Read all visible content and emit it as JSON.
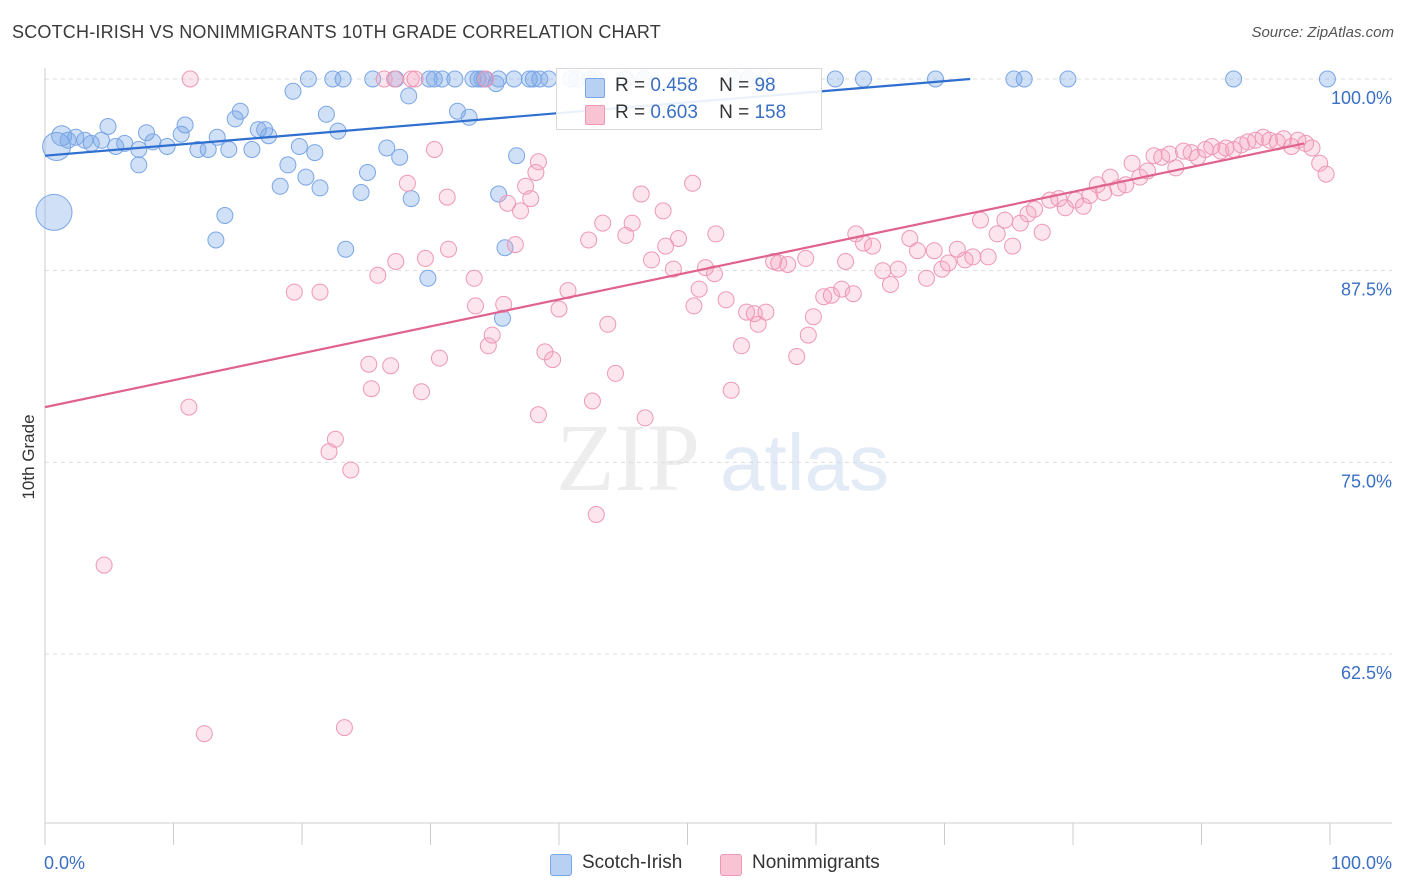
{
  "title": "SCOTCH-IRISH VS NONIMMIGRANTS 10TH GRADE CORRELATION CHART",
  "source": "Source: ZipAtlas.com",
  "watermark": {
    "zip": "ZIP",
    "atlas": "atlas"
  },
  "legend": {
    "r_label": "R =",
    "n_label": "N =",
    "rows": [
      {
        "r": "0.458",
        "n": "98"
      },
      {
        "r": "0.603",
        "n": "158"
      }
    ]
  },
  "bottom_legend": [
    "Scotch-Irish",
    "Nonimmigrants"
  ],
  "chart_data": {
    "type": "scatter",
    "ylabel": "10th Grade",
    "xlabel": "",
    "x_tick_labels": [
      "0.0%",
      "100.0%"
    ],
    "y_tick_labels": [
      "100.0%",
      "87.5%",
      "75.0%",
      "62.5%"
    ],
    "y_ticks": [
      100.0,
      87.5,
      75.0,
      62.5
    ],
    "xlim": [
      0,
      100
    ],
    "ylim": [
      52,
      102.5
    ],
    "grid": true,
    "colors": {
      "blue": "#6a9ae0",
      "pink": "#ee88aa",
      "blue_line": "#2f6fd0",
      "pink_line": "#e0628f",
      "tick_label": "#3a6fc4"
    },
    "series": [
      {
        "name": "Scotch-Irish",
        "trend": {
          "x": [
            0,
            72
          ],
          "y": [
            95.0,
            100.0
          ]
        },
        "points": [
          [
            0.9,
            95.6,
            14
          ],
          [
            0.7,
            91.3,
            18
          ],
          [
            1.3,
            96.3,
            10
          ],
          [
            1.8,
            96.0,
            8
          ],
          [
            2.4,
            96.2,
            8
          ],
          [
            3.1,
            96.0,
            8
          ],
          [
            3.6,
            95.8,
            8
          ],
          [
            4.4,
            96.0,
            8
          ],
          [
            4.9,
            96.9,
            8
          ],
          [
            5.5,
            95.6,
            8
          ],
          [
            6.2,
            95.8,
            8
          ],
          [
            7.3,
            95.4,
            8
          ],
          [
            7.9,
            96.5,
            8
          ],
          [
            8.4,
            95.9,
            8
          ],
          [
            9.5,
            95.6,
            8
          ],
          [
            10.6,
            96.4,
            8
          ],
          [
            10.9,
            97.0,
            8
          ],
          [
            11.9,
            95.4,
            8
          ],
          [
            12.7,
            95.4,
            8
          ],
          [
            14.3,
            95.4,
            8
          ],
          [
            16.1,
            95.4,
            8
          ],
          [
            7.3,
            94.4,
            8
          ],
          [
            13.4,
            96.2,
            8
          ],
          [
            14.8,
            97.4,
            8
          ],
          [
            15.2,
            97.9,
            8
          ],
          [
            16.6,
            96.7,
            8
          ],
          [
            17.1,
            96.7,
            8
          ],
          [
            17.4,
            96.3,
            8
          ],
          [
            19.3,
            99.2,
            8
          ],
          [
            18.3,
            93.0,
            8
          ],
          [
            18.9,
            94.4,
            8
          ],
          [
            19.8,
            95.6,
            8
          ],
          [
            20.3,
            93.6,
            8
          ],
          [
            21.0,
            95.2,
            8
          ],
          [
            21.4,
            92.9,
            8
          ],
          [
            21.9,
            97.7,
            8
          ],
          [
            22.8,
            96.6,
            8
          ],
          [
            14.0,
            91.1,
            8
          ],
          [
            13.3,
            89.5,
            8
          ],
          [
            23.4,
            88.9,
            8
          ],
          [
            25.1,
            93.9,
            8
          ],
          [
            24.6,
            92.6,
            8
          ],
          [
            26.6,
            95.5,
            8
          ],
          [
            27.6,
            94.9,
            8
          ],
          [
            28.3,
            98.9,
            8
          ],
          [
            28.5,
            92.2,
            8
          ],
          [
            29.9,
            100.0,
            8
          ],
          [
            30.3,
            100.0,
            8
          ],
          [
            30.9,
            100.0,
            8
          ],
          [
            29.8,
            87.0,
            8
          ],
          [
            32.1,
            97.9,
            8
          ],
          [
            33.0,
            97.5,
            8
          ],
          [
            33.7,
            100.0,
            8
          ],
          [
            34.2,
            100.0,
            8
          ],
          [
            35.3,
            100.0,
            8
          ],
          [
            35.1,
            99.7,
            8
          ],
          [
            36.5,
            100.0,
            8
          ],
          [
            35.6,
            84.4,
            8
          ],
          [
            35.8,
            89.0,
            8
          ],
          [
            36.7,
            95.0,
            8
          ],
          [
            37.7,
            100.0,
            8
          ],
          [
            38.0,
            100.0,
            8
          ],
          [
            38.5,
            100.0,
            8
          ],
          [
            39.2,
            100.0,
            8
          ],
          [
            40.9,
            100.0,
            8
          ],
          [
            41.4,
            100.0,
            8
          ],
          [
            42.4,
            100.0,
            8
          ],
          [
            42.8,
            100.0,
            8
          ],
          [
            35.3,
            92.5,
            8
          ],
          [
            45.2,
            100.0,
            8
          ],
          [
            46.6,
            100.0,
            8
          ],
          [
            53.6,
            100.0,
            8
          ],
          [
            54.7,
            100.0,
            8
          ],
          [
            56.0,
            100.0,
            8
          ],
          [
            61.5,
            100.0,
            8
          ],
          [
            63.7,
            100.0,
            8
          ],
          [
            69.3,
            100.0,
            8
          ],
          [
            75.4,
            100.0,
            8
          ],
          [
            76.2,
            100.0,
            8
          ],
          [
            79.6,
            100.0,
            8
          ],
          [
            92.5,
            100.0,
            8
          ],
          [
            99.8,
            100.0,
            8
          ],
          [
            27.3,
            100.0,
            8
          ],
          [
            25.5,
            100.0,
            8
          ],
          [
            23.2,
            100.0,
            8
          ],
          [
            20.5,
            100.0,
            8
          ],
          [
            22.4,
            100.0,
            8
          ],
          [
            31.9,
            100.0,
            8
          ],
          [
            33.3,
            100.0,
            8
          ],
          [
            34.0,
            100.0,
            8
          ]
        ]
      },
      {
        "name": "Nonimmigrants",
        "trend": {
          "x": [
            0,
            98
          ],
          "y": [
            78.6,
            95.8
          ]
        },
        "points": [
          [
            4.6,
            68.3,
            8
          ],
          [
            11.2,
            78.6,
            8
          ],
          [
            12.4,
            57.3,
            8
          ],
          [
            19.4,
            86.1,
            8
          ],
          [
            21.4,
            86.1,
            8
          ],
          [
            22.1,
            75.7,
            8
          ],
          [
            22.6,
            76.5,
            8
          ],
          [
            23.3,
            57.7,
            8
          ],
          [
            23.8,
            74.5,
            8
          ],
          [
            25.4,
            79.8,
            8
          ],
          [
            25.9,
            87.2,
            8
          ],
          [
            25.2,
            81.4,
            8
          ],
          [
            26.9,
            81.3,
            8
          ],
          [
            27.3,
            88.1,
            8
          ],
          [
            28.2,
            93.2,
            8
          ],
          [
            28.5,
            100.0,
            8
          ],
          [
            28.8,
            100.0,
            8
          ],
          [
            29.6,
            88.3,
            8
          ],
          [
            29.3,
            79.6,
            8
          ],
          [
            30.3,
            95.4,
            8
          ],
          [
            30.7,
            81.8,
            8
          ],
          [
            31.3,
            92.3,
            8
          ],
          [
            31.4,
            88.9,
            8
          ],
          [
            33.4,
            87.0,
            8
          ],
          [
            33.5,
            85.2,
            8
          ],
          [
            34.3,
            100.0,
            8
          ],
          [
            34.5,
            82.6,
            8
          ],
          [
            34.8,
            83.3,
            8
          ],
          [
            35.7,
            85.3,
            8
          ],
          [
            36.0,
            91.9,
            8
          ],
          [
            36.6,
            89.2,
            8
          ],
          [
            37.0,
            91.4,
            8
          ],
          [
            37.4,
            93.0,
            8
          ],
          [
            37.8,
            92.2,
            8
          ],
          [
            38.4,
            94.6,
            8
          ],
          [
            38.4,
            78.1,
            8
          ],
          [
            38.9,
            82.2,
            8
          ],
          [
            38.2,
            93.9,
            8
          ],
          [
            39.5,
            81.7,
            8
          ],
          [
            40.0,
            85.0,
            8
          ],
          [
            40.7,
            86.2,
            8
          ],
          [
            42.3,
            89.5,
            8
          ],
          [
            42.6,
            79.0,
            8
          ],
          [
            42.9,
            71.6,
            8
          ],
          [
            43.4,
            90.6,
            8
          ],
          [
            43.8,
            84.0,
            8
          ],
          [
            44.4,
            80.8,
            8
          ],
          [
            45.2,
            89.8,
            8
          ],
          [
            45.7,
            90.6,
            8
          ],
          [
            46.4,
            92.5,
            8
          ],
          [
            46.7,
            77.9,
            8
          ],
          [
            47.2,
            88.2,
            8
          ],
          [
            48.3,
            89.1,
            8
          ],
          [
            48.1,
            91.4,
            8
          ],
          [
            48.9,
            87.6,
            8
          ],
          [
            49.3,
            89.6,
            8
          ],
          [
            50.4,
            93.2,
            8
          ],
          [
            50.5,
            85.2,
            8
          ],
          [
            50.9,
            86.3,
            8
          ],
          [
            51.4,
            87.7,
            8
          ],
          [
            52.1,
            87.3,
            8
          ],
          [
            52.2,
            89.9,
            8
          ],
          [
            53.0,
            85.6,
            8
          ],
          [
            53.4,
            79.7,
            8
          ],
          [
            54.2,
            82.6,
            8
          ],
          [
            54.6,
            84.8,
            8
          ],
          [
            55.2,
            84.7,
            8
          ],
          [
            55.5,
            84.0,
            8
          ],
          [
            56.1,
            84.8,
            8
          ],
          [
            56.7,
            88.1,
            8
          ],
          [
            57.1,
            88.0,
            8
          ],
          [
            57.8,
            87.9,
            8
          ],
          [
            58.5,
            81.9,
            8
          ],
          [
            59.2,
            88.3,
            8
          ],
          [
            59.4,
            83.3,
            8
          ],
          [
            59.8,
            84.5,
            8
          ],
          [
            60.6,
            85.8,
            8
          ],
          [
            61.2,
            85.9,
            8
          ],
          [
            62.0,
            86.3,
            8
          ],
          [
            62.3,
            88.1,
            8
          ],
          [
            62.9,
            86.0,
            8
          ],
          [
            63.1,
            89.9,
            8
          ],
          [
            63.7,
            89.3,
            8
          ],
          [
            64.4,
            89.1,
            8
          ],
          [
            65.2,
            87.5,
            8
          ],
          [
            65.8,
            86.6,
            8
          ],
          [
            66.4,
            87.6,
            8
          ],
          [
            67.3,
            89.6,
            8
          ],
          [
            67.9,
            88.8,
            8
          ],
          [
            68.6,
            87.0,
            8
          ],
          [
            69.2,
            88.8,
            8
          ],
          [
            69.8,
            87.6,
            8
          ],
          [
            70.3,
            88.0,
            8
          ],
          [
            71.0,
            88.9,
            8
          ],
          [
            71.6,
            88.2,
            8
          ],
          [
            72.2,
            88.4,
            8
          ],
          [
            72.8,
            90.8,
            8
          ],
          [
            73.4,
            88.4,
            8
          ],
          [
            74.1,
            89.9,
            8
          ],
          [
            74.7,
            90.8,
            8
          ],
          [
            75.3,
            89.1,
            8
          ],
          [
            75.9,
            90.6,
            8
          ],
          [
            76.5,
            91.2,
            8
          ],
          [
            77.0,
            91.5,
            8
          ],
          [
            77.6,
            90.0,
            8
          ],
          [
            78.2,
            92.1,
            8
          ],
          [
            78.9,
            92.2,
            8
          ],
          [
            79.4,
            91.6,
            8
          ],
          [
            80.2,
            92.1,
            8
          ],
          [
            80.8,
            91.7,
            8
          ],
          [
            81.3,
            92.4,
            8
          ],
          [
            81.9,
            93.1,
            8
          ],
          [
            82.4,
            92.6,
            8
          ],
          [
            82.9,
            93.6,
            8
          ],
          [
            83.5,
            92.9,
            8
          ],
          [
            84.1,
            93.1,
            8
          ],
          [
            84.6,
            94.5,
            8
          ],
          [
            85.2,
            93.6,
            8
          ],
          [
            85.8,
            94.0,
            8
          ],
          [
            86.3,
            95.0,
            8
          ],
          [
            86.9,
            94.9,
            8
          ],
          [
            87.5,
            95.1,
            8
          ],
          [
            88.0,
            94.2,
            8
          ],
          [
            88.6,
            95.3,
            8
          ],
          [
            89.2,
            95.2,
            8
          ],
          [
            89.7,
            94.9,
            8
          ],
          [
            90.3,
            95.4,
            8
          ],
          [
            90.8,
            95.6,
            8
          ],
          [
            91.5,
            95.3,
            8
          ],
          [
            91.9,
            95.5,
            8
          ],
          [
            92.5,
            95.4,
            8
          ],
          [
            93.1,
            95.7,
            8
          ],
          [
            93.6,
            95.9,
            8
          ],
          [
            94.2,
            96.0,
            8
          ],
          [
            94.8,
            96.2,
            8
          ],
          [
            95.3,
            96.0,
            8
          ],
          [
            95.9,
            95.9,
            8
          ],
          [
            96.4,
            96.1,
            8
          ],
          [
            97.0,
            95.6,
            8
          ],
          [
            97.5,
            96.0,
            8
          ],
          [
            98.1,
            95.8,
            8
          ],
          [
            98.6,
            95.5,
            8
          ],
          [
            99.2,
            94.5,
            8
          ],
          [
            99.7,
            93.8,
            8
          ],
          [
            11.3,
            100.0,
            8
          ],
          [
            26.4,
            100.0,
            8
          ],
          [
            27.2,
            100.0,
            8
          ]
        ]
      }
    ]
  }
}
